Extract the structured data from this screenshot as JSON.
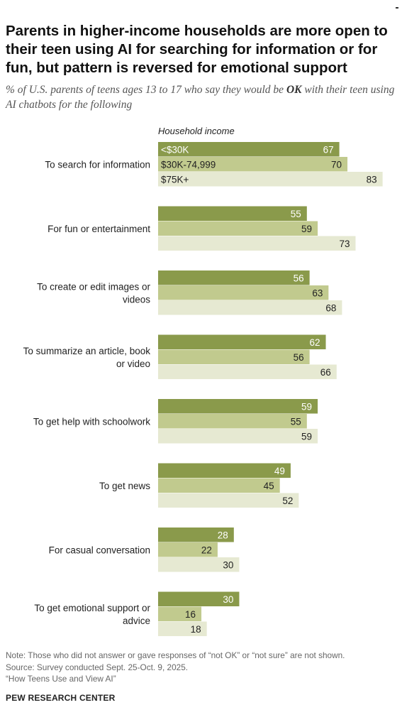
{
  "title": "Parents in higher-income households are more open to their teen using AI for searching for information or for fun, but pattern is reversed for emotional support",
  "subtitle_before": "% of U.S. parents of teens ages 13 to 17 who say they would be ",
  "subtitle_emph": "OK",
  "subtitle_after": " with their teen using AI chatbots for the following",
  "legend_title": "Household income",
  "colors": {
    "low": "#8a9a4b",
    "mid": "#c1ca8e",
    "high": "#e6e9d2"
  },
  "chart_data": {
    "type": "bar",
    "orientation": "horizontal",
    "categories": [
      [
        "To search for information"
      ],
      [
        "For fun or entertainment"
      ],
      [
        "To create or edit images or",
        "videos"
      ],
      [
        "To summarize an article, book",
        "or video"
      ],
      [
        "To get help with schoolwork"
      ],
      [
        "To get news"
      ],
      [
        "For casual conversation"
      ],
      [
        "To get emotional support or",
        "advice"
      ]
    ],
    "series": [
      {
        "name": "<$30K",
        "values": [
          67,
          55,
          56,
          62,
          59,
          49,
          28,
          30
        ]
      },
      {
        "name": "$30K-74,999",
        "values": [
          70,
          59,
          63,
          56,
          55,
          45,
          22,
          16
        ]
      },
      {
        "name": "$75K+",
        "values": [
          83,
          73,
          68,
          66,
          59,
          52,
          30,
          18
        ]
      }
    ],
    "xlim": [
      0,
      100
    ]
  },
  "notes": [
    "Note: Those who did not answer or gave responses of “not OK” or “not sure” are not shown.",
    "Source: Survey conducted Sept. 25-Oct. 9, 2025.",
    "“How Teens Use and View AI”"
  ],
  "footer": "PEW RESEARCH CENTER"
}
